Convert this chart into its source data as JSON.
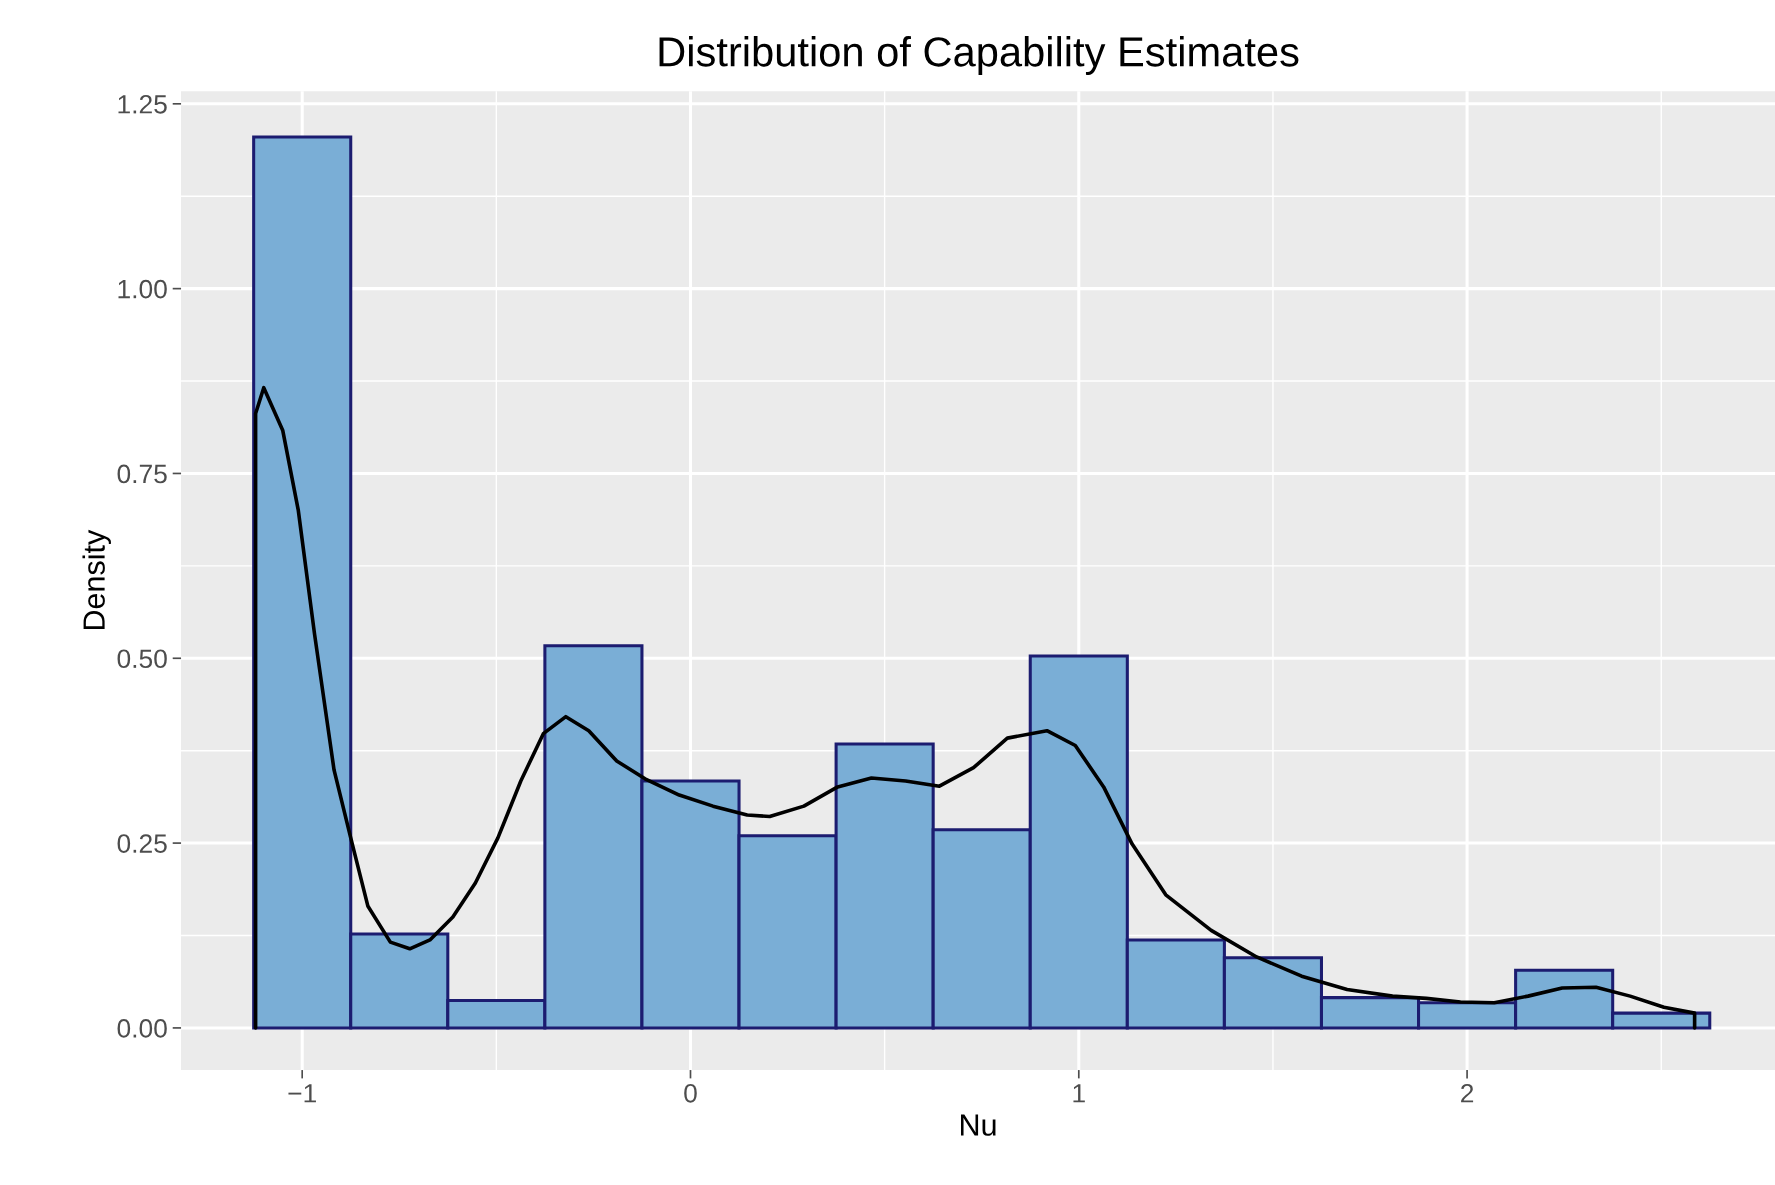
{
  "chart_data": {
    "type": "histogram",
    "title": "Distribution of Capability Estimates",
    "xlabel": "Nu",
    "ylabel": "Density",
    "xlim": [
      -1.312,
      2.793
    ],
    "ylim": [
      -0.057,
      1.267
    ],
    "xticks": [
      {
        "value": -1,
        "label": "−1"
      },
      0,
      1,
      2
    ],
    "yticks": [
      {
        "value": 0,
        "label": "0.00"
      },
      {
        "value": 0.25,
        "label": "0.25"
      },
      {
        "value": 0.5,
        "label": "0.50"
      },
      {
        "value": 0.75,
        "label": "0.75"
      },
      {
        "value": 1,
        "label": "1.00"
      },
      {
        "value": 1.25,
        "label": "1.25"
      }
    ],
    "grid": true,
    "series": [
      {
        "color": "#7aaed6",
        "bins": [
          -1.125,
          -0.875,
          -0.625,
          -0.375,
          -0.125,
          0.125,
          0.375,
          0.625,
          0.875,
          1.125,
          1.375,
          1.625,
          1.875,
          2.125,
          2.375,
          2.625
        ],
        "values": [
          1.205,
          0.127,
          0.037,
          0.517,
          0.334,
          0.26,
          0.384,
          0.268,
          0.503,
          0.119,
          0.095,
          0.041,
          0.034,
          0.078,
          0.02
        ]
      },
      {
        "type": "line",
        "color": "#000000",
        "x": [
          -1.12,
          -1.12,
          -1.099,
          -1.05,
          -1.01,
          -0.968,
          -0.918,
          -0.875,
          -0.831,
          -0.773,
          -0.723,
          -0.671,
          -0.612,
          -0.554,
          -0.496,
          -0.437,
          -0.379,
          -0.321,
          -0.262,
          -0.19,
          -0.117,
          -0.029,
          0.058,
          0.146,
          0.204,
          0.292,
          0.379,
          0.466,
          0.554,
          0.641,
          0.729,
          0.816,
          0.918,
          0.991,
          1.064,
          1.137,
          1.224,
          1.341,
          1.458,
          1.574,
          1.691,
          1.808,
          1.895,
          1.983,
          2.07,
          2.157,
          2.245,
          2.332,
          2.42,
          2.507,
          2.586,
          2.586
        ],
        "values": [
          0,
          0.831,
          0.866,
          0.808,
          0.7,
          0.532,
          0.349,
          0.257,
          0.165,
          0.116,
          0.107,
          0.119,
          0.15,
          0.196,
          0.257,
          0.334,
          0.398,
          0.421,
          0.402,
          0.361,
          0.337,
          0.315,
          0.3,
          0.288,
          0.286,
          0.3,
          0.326,
          0.338,
          0.334,
          0.327,
          0.352,
          0.392,
          0.402,
          0.382,
          0.326,
          0.249,
          0.18,
          0.132,
          0.096,
          0.07,
          0.052,
          0.043,
          0.04,
          0.035,
          0.034,
          0.043,
          0.054,
          0.055,
          0.043,
          0.028,
          0.02,
          0
        ]
      }
    ]
  }
}
